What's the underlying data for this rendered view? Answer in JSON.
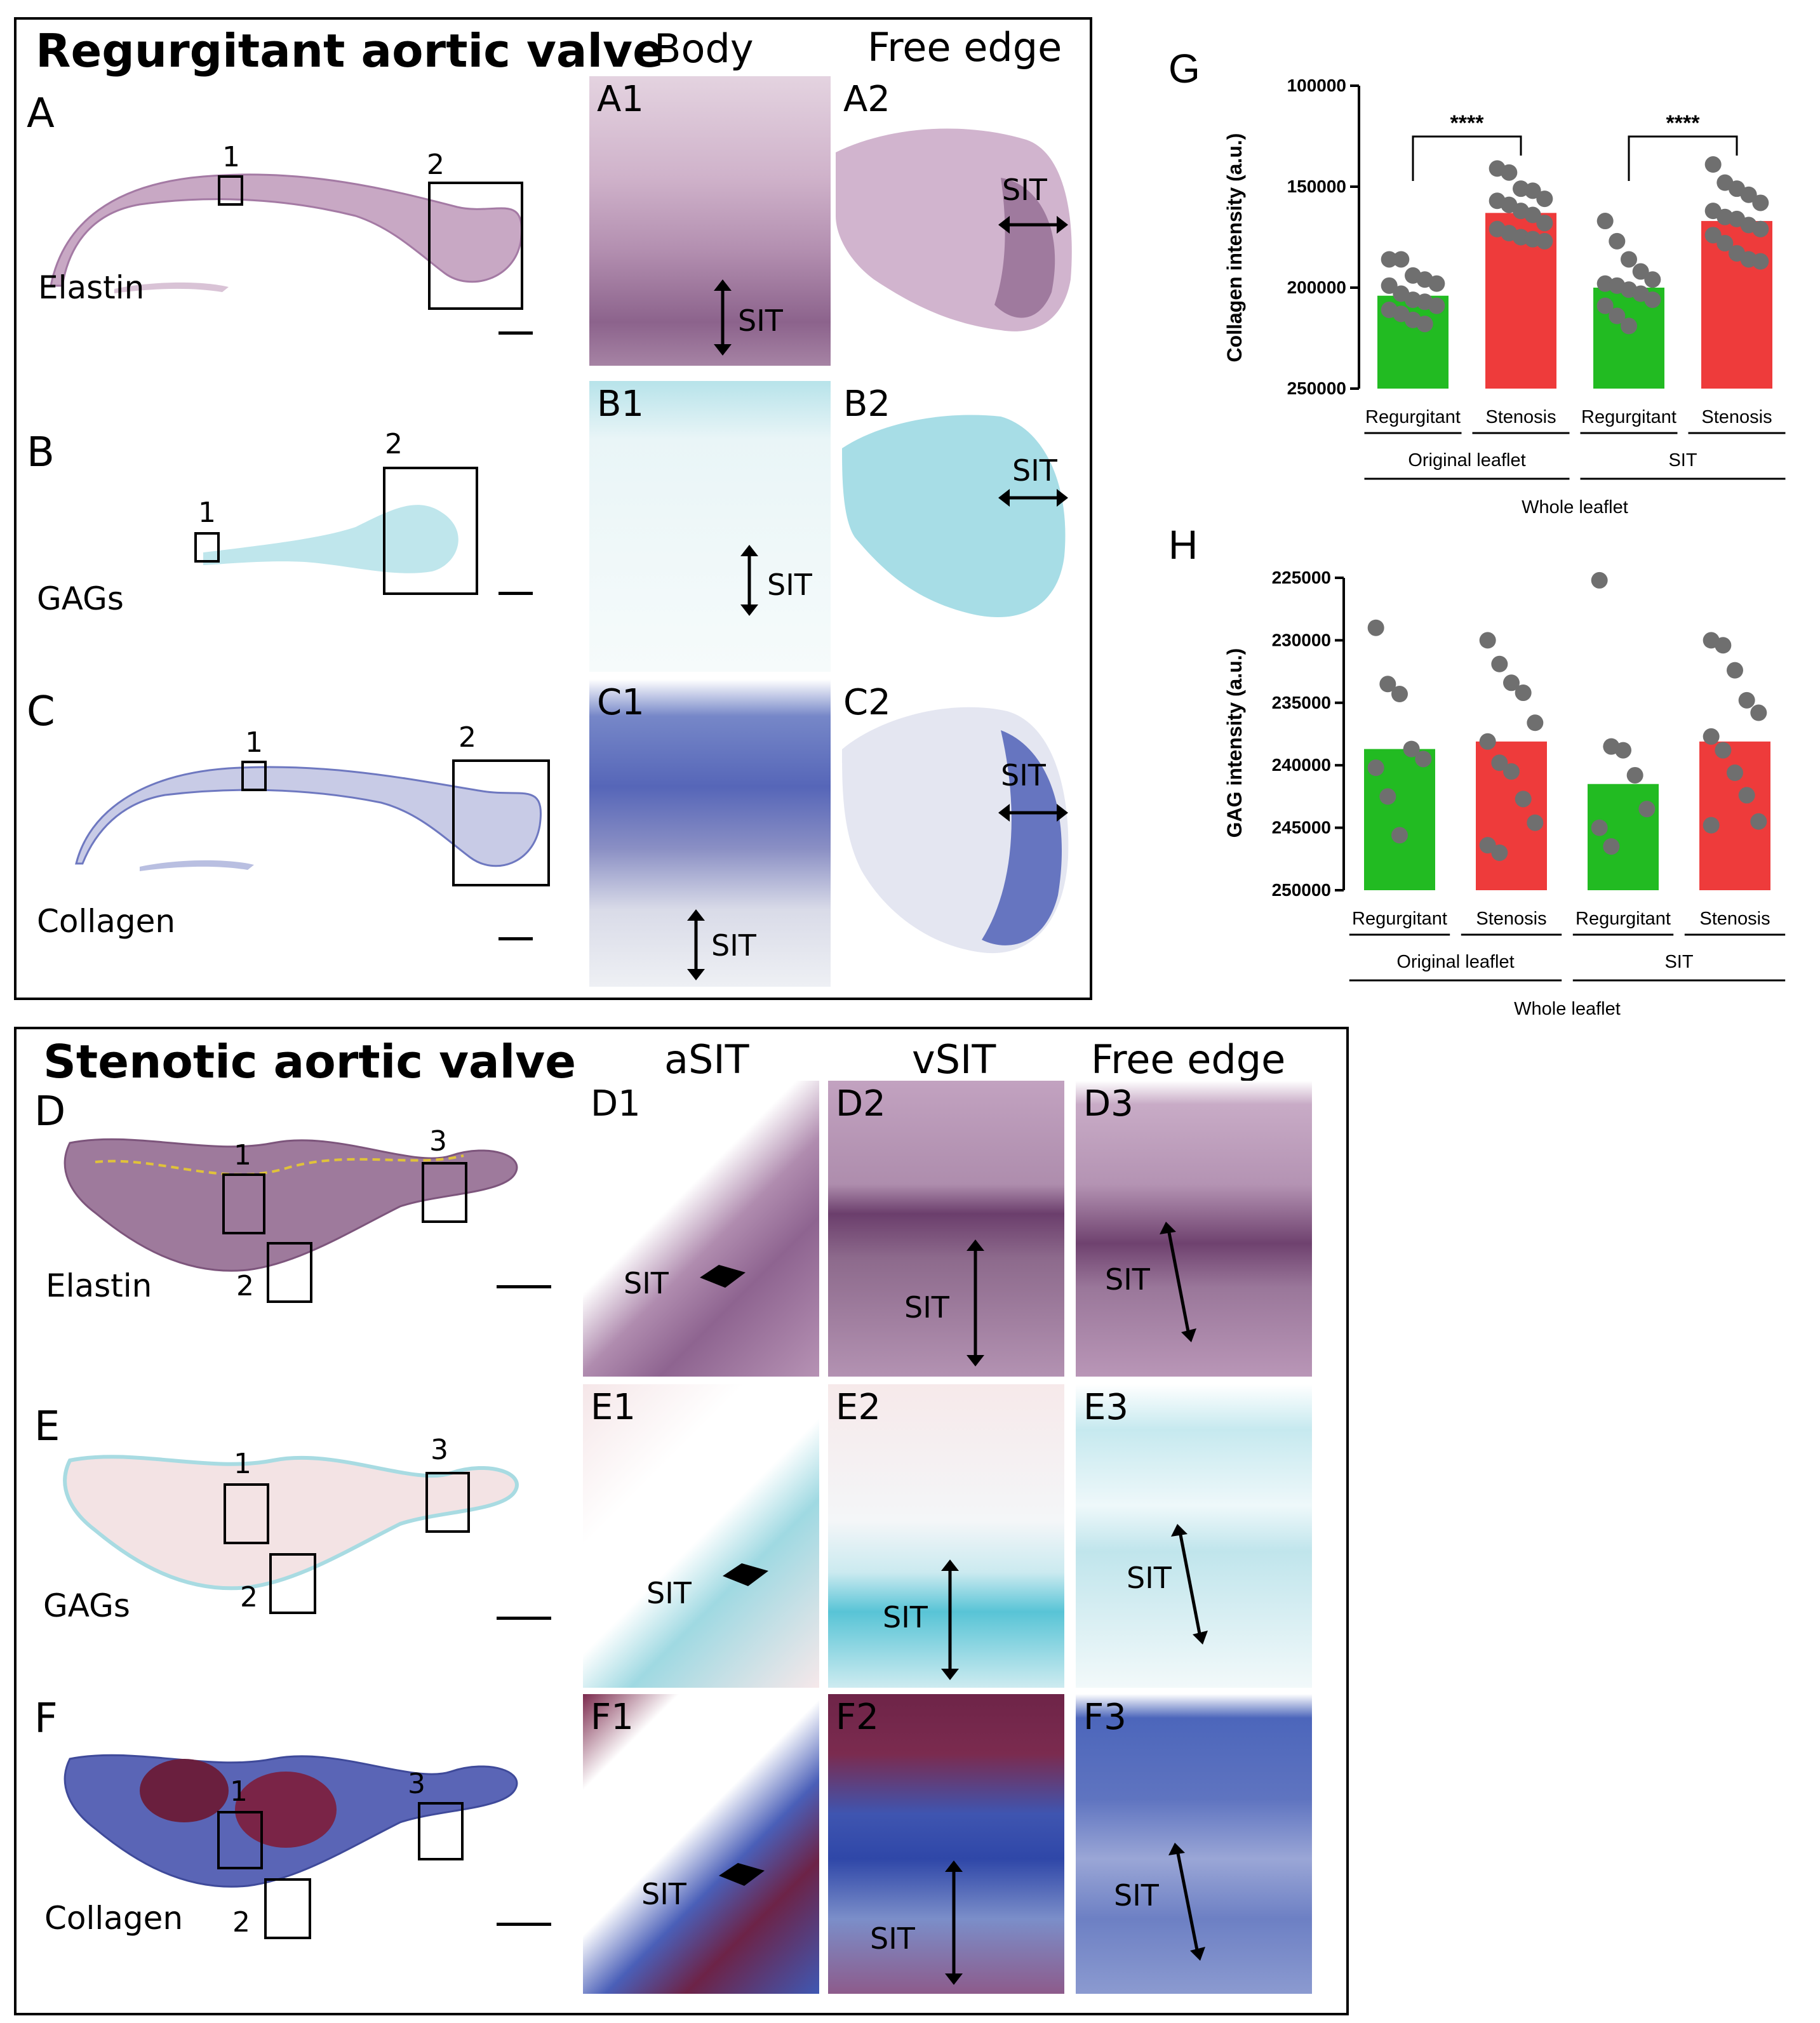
{
  "regurgitant": {
    "title": "Regurgitant aortic valve",
    "col_body": "Body",
    "col_free_edge": "Free edge",
    "rows": [
      {
        "letter": "A",
        "stain": "Elastin",
        "roi1": "1",
        "roi2": "2",
        "p1": "A1",
        "p2": "A2"
      },
      {
        "letter": "B",
        "stain": "GAGs",
        "roi1": "1",
        "roi2": "2",
        "p1": "B1",
        "p2": "B2"
      },
      {
        "letter": "C",
        "stain": "Collagen",
        "roi1": "1",
        "roi2": "2",
        "p1": "C1",
        "p2": "C2"
      }
    ],
    "sit": "SIT"
  },
  "stenotic": {
    "title": "Stenotic aortic valve",
    "col_asit": "aSIT",
    "col_vsit": "vSIT",
    "col_free_edge": "Free edge",
    "rows": [
      {
        "letter": "D",
        "stain": "Elastin",
        "roi1": "1",
        "roi2": "2",
        "roi3": "3",
        "p1": "D1",
        "p2": "D2",
        "p3": "D3"
      },
      {
        "letter": "E",
        "stain": "GAGs",
        "roi1": "1",
        "roi2": "2",
        "roi3": "3",
        "p1": "E1",
        "p2": "E2",
        "p3": "E3"
      },
      {
        "letter": "F",
        "stain": "Collagen",
        "roi1": "1",
        "roi2": "2",
        "roi3": "3",
        "p1": "F1",
        "p2": "F2",
        "p3": "F3"
      }
    ],
    "sit": "SIT"
  },
  "chart_data": [
    {
      "panel": "G",
      "type": "bar",
      "ylabel": "Collagen intensity (a.u.)",
      "ylim": [
        250000,
        100000
      ],
      "yticks": [
        "100000",
        "150000",
        "200000",
        "250000"
      ],
      "categories": [
        "Regurgitant",
        "Stenosis",
        "Regurgitant",
        "Stenosis"
      ],
      "groups": [
        "Original leaflet",
        "SIT"
      ],
      "supergroup": "Whole leaflet",
      "values": [
        204000,
        163000,
        200000,
        167000
      ],
      "colors": [
        "#22bb22",
        "#ee3b3b",
        "#22bb22",
        "#ee3b3b"
      ],
      "significance": [
        "****",
        "****"
      ],
      "points": [
        [
          186000,
          186000,
          194000,
          196000,
          198000,
          199000,
          203000,
          206000,
          207000,
          209000,
          211000,
          213000,
          216000,
          218000
        ],
        [
          141000,
          143000,
          151000,
          152000,
          156000,
          157000,
          159000,
          162000,
          164000,
          168000,
          171000,
          173000,
          175000,
          176000,
          177000
        ],
        [
          167000,
          177000,
          186000,
          192000,
          196000,
          198000,
          199000,
          201000,
          203000,
          206000,
          209000,
          214000,
          219000
        ],
        [
          139000,
          148000,
          151000,
          154000,
          158000,
          162000,
          165000,
          166000,
          169000,
          171000,
          174000,
          178000,
          183000,
          186000,
          187000
        ]
      ]
    },
    {
      "panel": "H",
      "type": "bar",
      "ylabel": "GAG intensity (a.u.)",
      "ylim": [
        250000,
        225000
      ],
      "yticks": [
        "225000",
        "230000",
        "235000",
        "240000",
        "245000",
        "250000"
      ],
      "categories": [
        "Regurgitant",
        "Stenosis",
        "Regurgitant",
        "Stenosis"
      ],
      "groups": [
        "Original leaflet",
        "SIT"
      ],
      "supergroup": "Whole leaflet",
      "values": [
        238700,
        238100,
        241500,
        238100
      ],
      "colors": [
        "#22bb22",
        "#ee3b3b",
        "#22bb22",
        "#ee3b3b"
      ],
      "points": [
        [
          229000,
          233500,
          234300,
          238700,
          239500,
          240200,
          242500,
          245600
        ],
        [
          230000,
          231900,
          233400,
          234200,
          236600,
          238100,
          239800,
          240500,
          242700,
          244600,
          246400,
          247000
        ],
        [
          225200,
          238500,
          238800,
          240800,
          243500,
          245000,
          246500
        ],
        [
          230000,
          230400,
          232400,
          234800,
          235800,
          237700,
          238800,
          240600,
          242400,
          244500,
          244800
        ]
      ]
    }
  ]
}
